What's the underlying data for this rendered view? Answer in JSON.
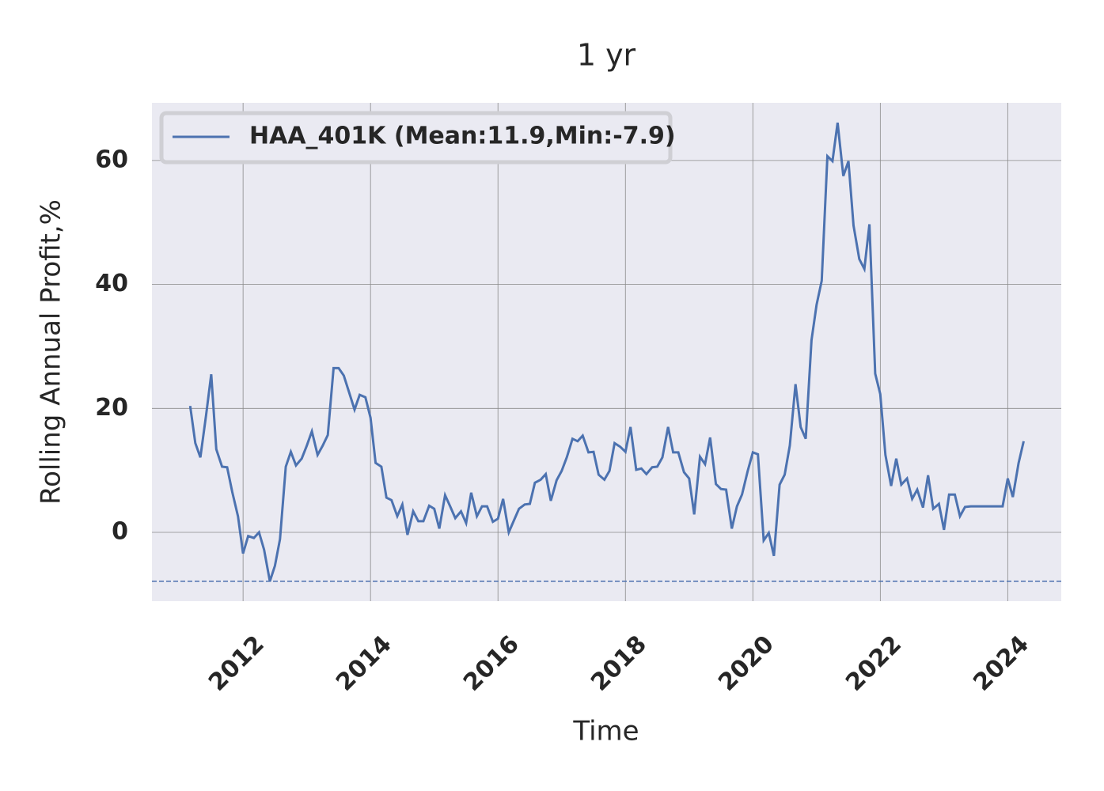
{
  "chart_data": {
    "type": "line",
    "title": "1 yr",
    "xlabel": "Time",
    "ylabel": "Rolling Annual Profit,%",
    "xlim": [
      2010.57,
      2024.84
    ],
    "ylim": [
      -11.1,
      69.3
    ],
    "xticks": [
      2012,
      2014,
      2016,
      2018,
      2020,
      2022,
      2024
    ],
    "yticks": [
      0,
      20,
      40,
      60
    ],
    "grid": true,
    "legend": "upper left",
    "min_line": -7.9,
    "x": [
      2011.17,
      2011.25,
      2011.33,
      2011.42,
      2011.5,
      2011.58,
      2011.67,
      2011.75,
      2011.83,
      2011.92,
      2012.0,
      2012.08,
      2012.17,
      2012.25,
      2012.33,
      2012.42,
      2012.5,
      2012.58,
      2012.67,
      2012.75,
      2012.83,
      2012.92,
      2013.0,
      2013.08,
      2013.17,
      2013.25,
      2013.33,
      2013.42,
      2013.5,
      2013.58,
      2013.67,
      2013.75,
      2013.83,
      2013.92,
      2014.0,
      2014.08,
      2014.17,
      2014.25,
      2014.33,
      2014.42,
      2014.5,
      2014.58,
      2014.67,
      2014.75,
      2014.83,
      2014.92,
      2015.0,
      2015.08,
      2015.17,
      2015.25,
      2015.33,
      2015.42,
      2015.5,
      2015.58,
      2015.67,
      2015.75,
      2015.83,
      2015.92,
      2016.0,
      2016.08,
      2016.17,
      2016.25,
      2016.33,
      2016.42,
      2016.5,
      2016.58,
      2016.67,
      2016.75,
      2016.83,
      2016.92,
      2017.0,
      2017.08,
      2017.17,
      2017.25,
      2017.33,
      2017.42,
      2017.5,
      2017.58,
      2017.67,
      2017.75,
      2017.83,
      2017.92,
      2018.0,
      2018.08,
      2018.17,
      2018.25,
      2018.33,
      2018.42,
      2018.5,
      2018.58,
      2018.67,
      2018.75,
      2018.83,
      2018.92,
      2019.0,
      2019.08,
      2019.17,
      2019.25,
      2019.33,
      2019.42,
      2019.5,
      2019.58,
      2019.67,
      2019.75,
      2019.83,
      2019.92,
      2020.0,
      2020.08,
      2020.17,
      2020.25,
      2020.33,
      2020.42,
      2020.5,
      2020.58,
      2020.67,
      2020.75,
      2020.83,
      2020.92,
      2021.0,
      2021.08,
      2021.17,
      2021.25,
      2021.33,
      2021.42,
      2021.5,
      2021.58,
      2021.67,
      2021.75,
      2021.83,
      2021.92,
      2022.0,
      2022.08,
      2022.17,
      2022.25,
      2022.33,
      2022.42,
      2022.5,
      2022.58,
      2022.67,
      2022.75,
      2022.83,
      2022.92,
      2023.0,
      2023.08,
      2023.17,
      2023.25,
      2023.33,
      2023.42,
      2023.5,
      2023.58,
      2023.67,
      2023.75,
      2023.83,
      2023.92,
      2024.0,
      2024.08,
      2024.17,
      2024.25
    ],
    "series": [
      {
        "name": "HAA_401K (Mean:11.9,Min:-7.9)",
        "color": "#4c72b0",
        "values": [
          20.4,
          14.4,
          12.1,
          18.9,
          25.5,
          13.4,
          10.6,
          10.5,
          6.5,
          2.6,
          -3.4,
          -0.6,
          -0.9,
          0,
          -2.8,
          -7.9,
          -5.4,
          -1.1,
          10.6,
          13.0,
          10.8,
          11.9,
          14.0,
          16.3,
          12.5,
          14.0,
          15.7,
          26.5,
          26.5,
          25.3,
          22.4,
          19.8,
          22.2,
          21.8,
          18.5,
          11.2,
          10.6,
          5.6,
          5.2,
          2.6,
          4.5,
          -0.4,
          3.4,
          1.8,
          1.8,
          4.3,
          3.8,
          0.6,
          6.0,
          4.2,
          2.3,
          3.4,
          1.5,
          6.4,
          2.6,
          4.2,
          4.2,
          1.7,
          2.2,
          5.4,
          0,
          1.9,
          3.8,
          4.5,
          4.6,
          8.0,
          8.5,
          9.4,
          5.1,
          8.4,
          9.9,
          12.1,
          15.1,
          14.7,
          15.6,
          12.9,
          13.0,
          9.3,
          8.5,
          9.9,
          14.4,
          13.8,
          13.0,
          17.0,
          10.1,
          10.3,
          9.4,
          10.5,
          10.6,
          12.1,
          17.0,
          12.9,
          12.9,
          9.7,
          8.7,
          2.9,
          12.2,
          11.0,
          15.3,
          7.8,
          7.0,
          6.9,
          0.6,
          4.2,
          6.1,
          9.9,
          12.9,
          12.6,
          -1.3,
          -0.1,
          -3.8,
          7.7,
          9.3,
          14.0,
          23.9,
          17.0,
          15.1,
          31.0,
          36.7,
          40.6,
          60.7,
          59.9,
          66.1,
          57.5,
          59.9,
          49.5,
          44.1,
          42.5,
          49.7,
          25.6,
          22.3,
          12.5,
          7.5,
          11.9,
          7.7,
          8.7,
          5.4,
          6.9,
          4.0,
          9.2,
          3.8,
          4.6,
          0.4,
          6.1,
          6.1,
          2.6,
          4.1,
          4.2,
          4.2,
          4.2,
          4.2,
          4.2,
          4.2,
          4.2,
          8.7,
          5.7,
          11.2,
          14.7
        ]
      }
    ]
  }
}
